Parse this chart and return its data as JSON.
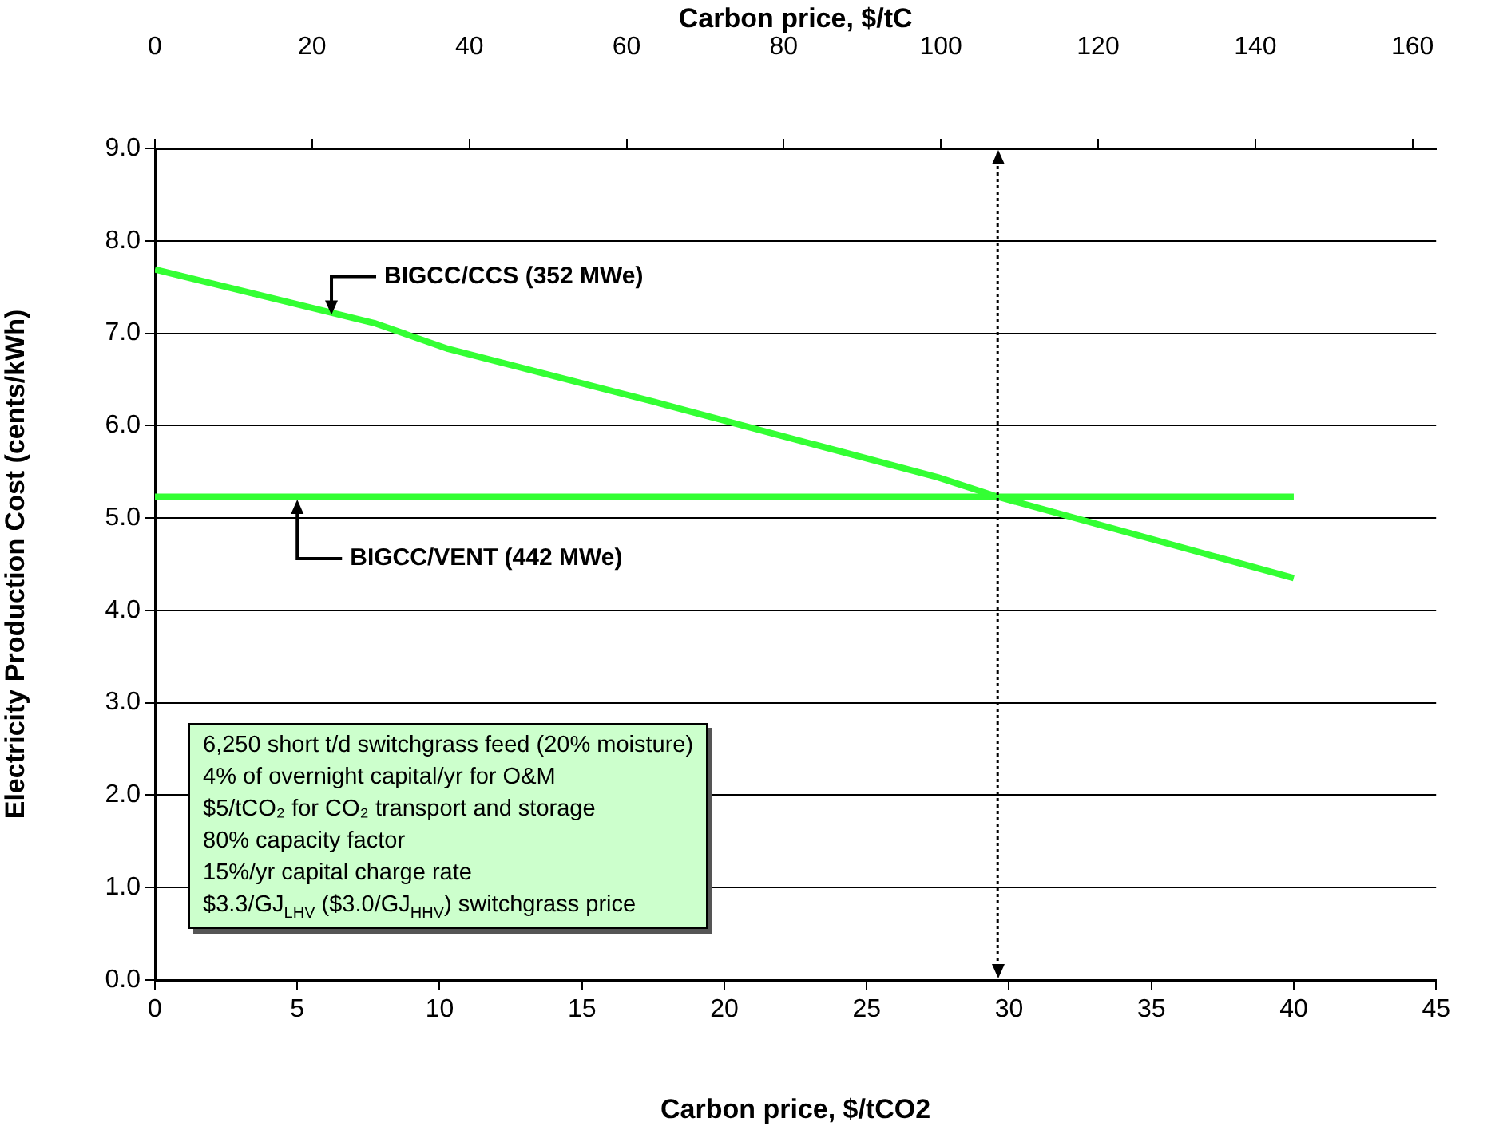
{
  "chart_data": {
    "type": "line",
    "xlabel": "Carbon price, $/tCO2",
    "x2label": "Carbon price, $/tC",
    "ylabel": "Electricity Production Cost (cents/kWh)",
    "xlim": [
      0,
      45
    ],
    "xticks": [
      0,
      5,
      10,
      15,
      20,
      25,
      30,
      35,
      40,
      45
    ],
    "x2lim": [
      0,
      163
    ],
    "x2ticks": [
      0,
      20,
      40,
      60,
      80,
      100,
      120,
      140,
      160
    ],
    "ylim": [
      0,
      9
    ],
    "yticks": [
      {
        "value": 0,
        "label": "0.0"
      },
      {
        "value": 1,
        "label": "1.0"
      },
      {
        "value": 2,
        "label": "2.0"
      },
      {
        "value": 3,
        "label": "3.0"
      },
      {
        "value": 4,
        "label": "4.0"
      },
      {
        "value": 5,
        "label": "5.0"
      },
      {
        "value": 6,
        "label": "6.0"
      },
      {
        "value": 7,
        "label": "7.0"
      },
      {
        "value": 8,
        "label": "8.0"
      },
      {
        "value": 9,
        "label": "9.0"
      }
    ],
    "grid": "y",
    "legend": false,
    "marker": "none",
    "line_style": "solid",
    "series": [
      {
        "color": "#33ff33",
        "x": [
          0,
          7.7,
          10.3,
          17.5,
          27.5,
          29.6,
          40
        ],
        "values": [
          7.69,
          7.11,
          6.83,
          6.26,
          5.44,
          5.23,
          4.35
        ]
      },
      {
        "color": "#33ff33",
        "x": [
          0,
          40
        ],
        "values": [
          5.23,
          5.23
        ]
      }
    ],
    "ref_lines": [
      {
        "axis": "x",
        "value": 29.6,
        "color": "#000000",
        "line_style": "dotted"
      }
    ],
    "annotations": [
      {
        "text": "BIGCC/CCS (352 MWe)",
        "x": 6.2,
        "y": 7.2
      },
      {
        "text": "BIGCC/VENT (442 MWe)",
        "x": 5,
        "y": 5.2
      },
      "6,250 short t/d switchgrass feed (20% moisture)\n4% of overnight capital/yr for O&M\n$5/tCO₂ for CO₂ transport and storage\n80% capacity factor\n15%/yr capital charge rate\n$3.3/GJ$_{LHV}$ ($3.0/GJ$_{HHV}$) switchgrass price"
    ]
  }
}
